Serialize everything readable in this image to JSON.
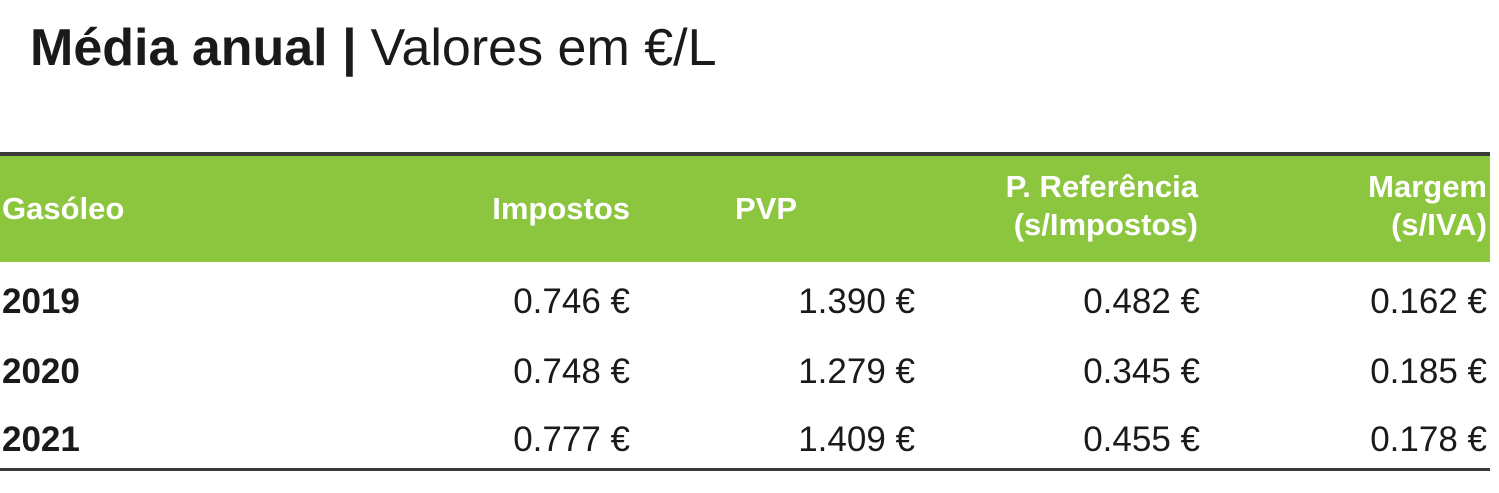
{
  "title": {
    "bold": "Média anual |",
    "regular": "Valores em €/L"
  },
  "table": {
    "header": [
      [
        "Gasóleo"
      ],
      [
        "Impostos"
      ],
      [
        "PVP"
      ],
      [
        "P. Referência",
        "(s/Impostos)"
      ],
      [
        "Margem",
        "(s/IVA)"
      ]
    ],
    "rows": [
      [
        "2019",
        "0.746 €",
        "1.390 €",
        "0.482 €",
        "0.162 €"
      ],
      [
        "2020",
        "0.748 €",
        "1.279 €",
        "0.345 €",
        "0.185 €"
      ],
      [
        "2021",
        "0.777 €",
        "1.409 €",
        "0.455 €",
        "0.178 €"
      ]
    ]
  }
}
